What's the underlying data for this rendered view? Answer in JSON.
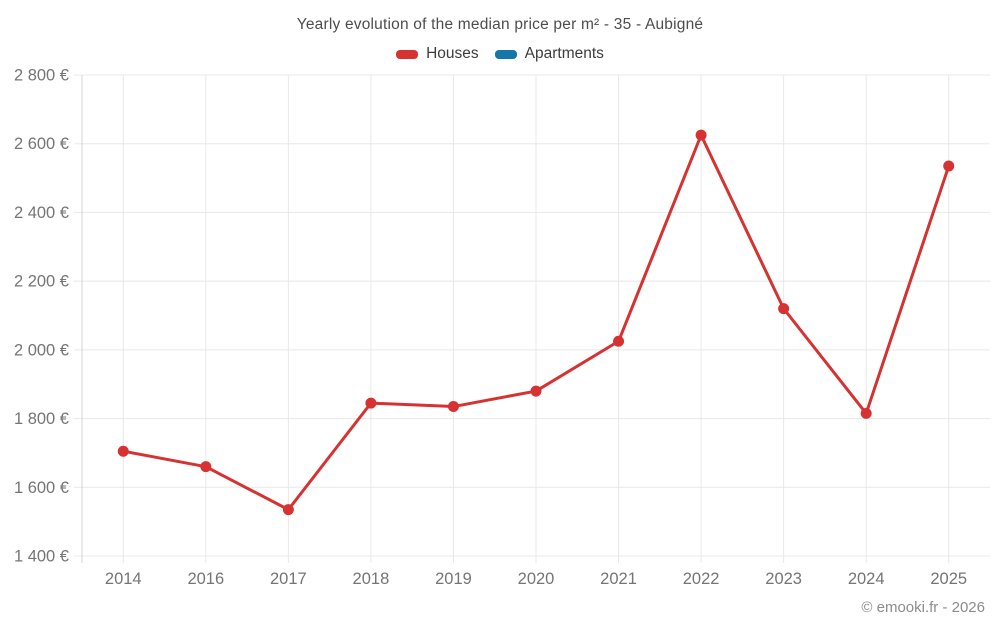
{
  "chart": {
    "title": "Yearly evolution of the median price per m² - 35 - Aubigné",
    "footer": "© emooki.fr - 2026"
  },
  "chart_data": {
    "type": "line",
    "title": "Yearly evolution of the median price per m² - 35 - Aubigné",
    "categories": [
      "2014",
      "2016",
      "2017",
      "2018",
      "2019",
      "2020",
      "2021",
      "2022",
      "2023",
      "2024",
      "2025"
    ],
    "series": [
      {
        "name": "Houses",
        "color": "#d53231",
        "values": [
          1705,
          1660,
          1535,
          1845,
          1835,
          1880,
          2025,
          2625,
          2120,
          1815,
          2535
        ]
      },
      {
        "name": "Apartments",
        "color": "#1576a8",
        "values": []
      }
    ],
    "xlabel": "",
    "ylabel": "",
    "ylim": [
      1400,
      2800
    ],
    "ytick_step": 200,
    "yticklabels": [
      "1 400 €",
      "1 600 €",
      "1 800 €",
      "2 000 €",
      "2 200 €",
      "2 400 €",
      "2 600 €",
      "2 800 €"
    ],
    "grid": true,
    "legend_position": "top",
    "colors": {
      "grid": "#e8e8e8",
      "axis": "#d4d4d4",
      "tick_text": "#757575"
    }
  }
}
